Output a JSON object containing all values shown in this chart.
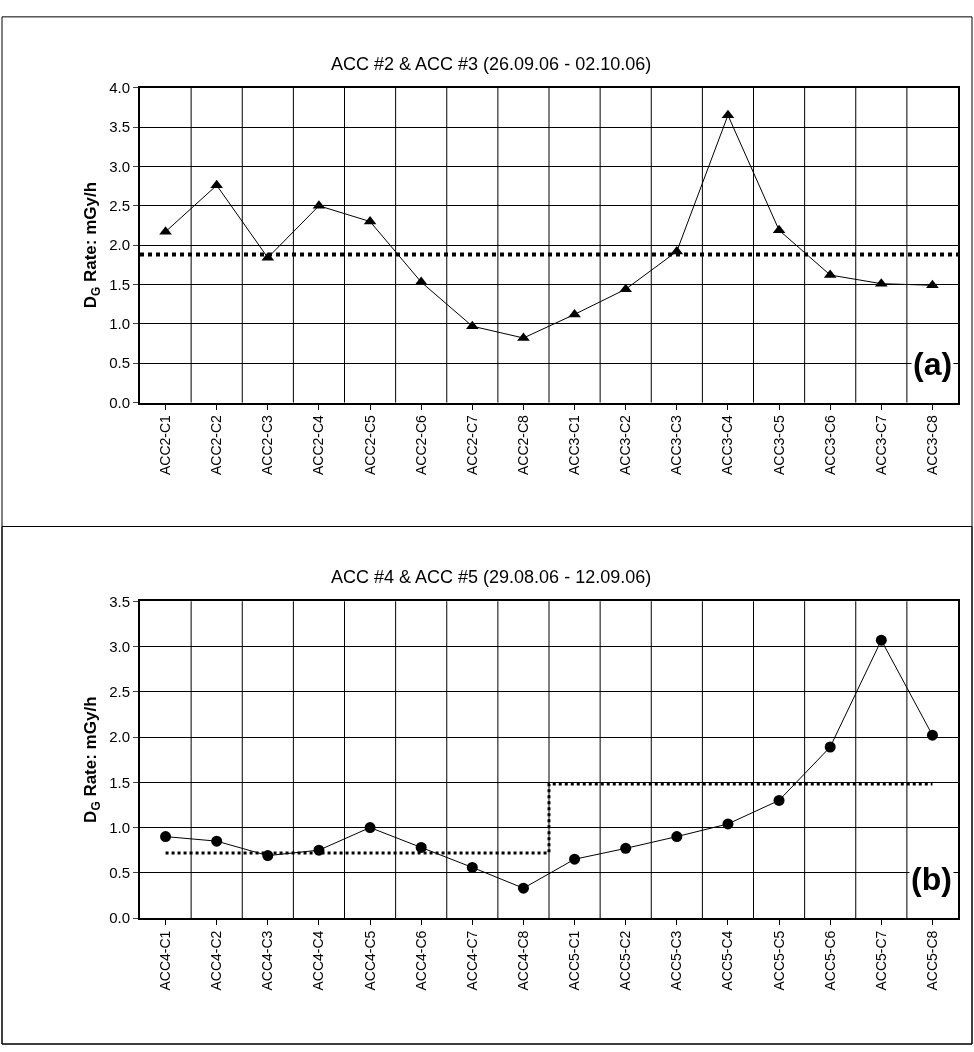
{
  "chart_data": [
    {
      "type": "line",
      "title": "ACC #2 & ACC #3 (26.09.06 - 02.10.06)",
      "ylabel": "D$_{G}$ Rate: mGy/h",
      "categories": [
        "ACC2-C1",
        "ACC2-C2",
        "ACC2-C3",
        "ACC2-C4",
        "ACC2-C5",
        "ACC2-C6",
        "ACC2-C7",
        "ACC2-C8",
        "ACC3-C1",
        "ACC3-C2",
        "ACC3-C3",
        "ACC3-C4",
        "ACC3-C5",
        "ACC3-C6",
        "ACC3-C7",
        "ACC3-C8"
      ],
      "series": [
        {
          "color": "#000000",
          "marker": "triangle",
          "line_style": "solid",
          "values": [
            2.17,
            2.76,
            1.84,
            2.5,
            2.3,
            1.53,
            0.97,
            0.82,
            1.12,
            1.44,
            1.92,
            3.65,
            2.19,
            1.62,
            1.51,
            1.49
          ]
        }
      ],
      "ref_lines": [
        {
          "axis": "y",
          "value": 1.88,
          "color": "#000000",
          "line_style": "dotted"
        }
      ],
      "ylim": [
        0,
        4
      ],
      "yticks": [
        {
          "value": 0,
          "label": "0.0"
        },
        {
          "value": 0.5,
          "label": "0.5"
        },
        {
          "value": 1,
          "label": "1.0"
        },
        {
          "value": 1.5,
          "label": "1.5"
        },
        {
          "value": 2,
          "label": "2.0"
        },
        {
          "value": 2.5,
          "label": "2.5"
        },
        {
          "value": 3,
          "label": "3.0"
        },
        {
          "value": 3.5,
          "label": "3.5"
        },
        {
          "value": 4,
          "label": "4.0"
        }
      ],
      "grid": true,
      "annotations": [
        "(a)"
      ]
    },
    {
      "type": "line",
      "title": "ACC #4 & ACC #5 (29.08.06 - 12.09.06)",
      "ylabel": "D$_{G}$ Rate: mGy/h",
      "categories": [
        "ACC4-C1",
        "ACC4-C2",
        "ACC4-C3",
        "ACC4-C4",
        "ACC4-C5",
        "ACC4-C6",
        "ACC4-C7",
        "ACC4-C8",
        "ACC5-C1",
        "ACC5-C2",
        "ACC5-C3",
        "ACC5-C4",
        "ACC5-C5",
        "ACC5-C6",
        "ACC5-C7",
        "ACC5-C8"
      ],
      "series": [
        {
          "type": "step",
          "color": "#000000",
          "marker": "none",
          "line_style": "dotted",
          "values": [
            0.72,
            0.72,
            0.72,
            0.72,
            0.72,
            0.72,
            0.72,
            0.72,
            1.48,
            1.48,
            1.48,
            1.48,
            1.48,
            1.48,
            1.48,
            1.48
          ]
        },
        {
          "color": "#000000",
          "marker": "circle",
          "line_style": "solid",
          "values": [
            0.9,
            0.85,
            0.69,
            0.75,
            1.0,
            0.78,
            0.56,
            0.33,
            0.65,
            0.77,
            0.9,
            1.04,
            1.3,
            1.89,
            3.07,
            2.02
          ]
        }
      ],
      "ylim": [
        0,
        3.5
      ],
      "yticks": [
        {
          "value": 0,
          "label": "0.0"
        },
        {
          "value": 0.5,
          "label": "0.5"
        },
        {
          "value": 1,
          "label": "1.0"
        },
        {
          "value": 1.5,
          "label": "1.5"
        },
        {
          "value": 2,
          "label": "2.0"
        },
        {
          "value": 2.5,
          "label": "2.5"
        },
        {
          "value": 3,
          "label": "3.0"
        },
        {
          "value": 3.5,
          "label": "3.5"
        }
      ],
      "grid": true,
      "annotations": [
        "(b)"
      ]
    }
  ]
}
